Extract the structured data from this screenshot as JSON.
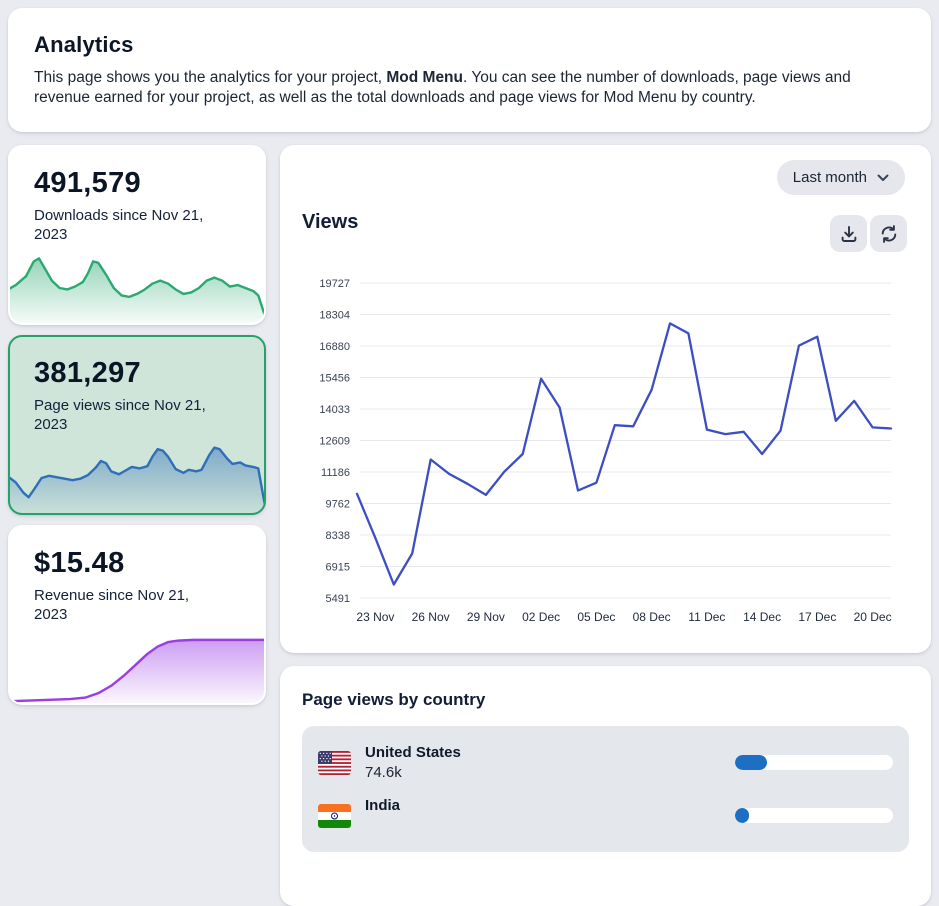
{
  "header": {
    "title": "Analytics",
    "description_prefix": "This page shows you the analytics for your project, ",
    "project_name": "Mod Menu",
    "description_suffix": ". You can see the number of downloads, page views and revenue earned for your project, as well as the total downloads and page views for Mod Menu by country."
  },
  "stat_cards": [
    {
      "id": "downloads",
      "value": "491,579",
      "label": "Downloads since Nov 21, 2023",
      "selected": false,
      "accent": "#2aa971",
      "sparkline": [
        [
          0,
          52
        ],
        [
          3,
          46
        ],
        [
          7,
          34
        ],
        [
          10,
          14
        ],
        [
          12,
          10
        ],
        [
          14,
          22
        ],
        [
          17,
          40
        ],
        [
          20,
          50
        ],
        [
          23,
          52
        ],
        [
          26,
          48
        ],
        [
          29,
          42
        ],
        [
          31,
          30
        ],
        [
          33,
          14
        ],
        [
          35,
          16
        ],
        [
          38,
          32
        ],
        [
          41,
          50
        ],
        [
          44,
          60
        ],
        [
          47,
          62
        ],
        [
          50,
          58
        ],
        [
          53,
          52
        ],
        [
          56,
          44
        ],
        [
          59,
          40
        ],
        [
          62,
          44
        ],
        [
          65,
          52
        ],
        [
          68,
          58
        ],
        [
          71,
          56
        ],
        [
          74,
          50
        ],
        [
          77,
          40
        ],
        [
          80,
          36
        ],
        [
          83,
          40
        ],
        [
          86,
          48
        ],
        [
          89,
          46
        ],
        [
          92,
          50
        ],
        [
          95,
          54
        ],
        [
          97,
          60
        ],
        [
          100,
          92
        ]
      ]
    },
    {
      "id": "page-views",
      "value": "381,297",
      "label": "Page views since Nov 21, 2023",
      "selected": true,
      "accent": "#2f6fb7",
      "sparkline": [
        [
          0,
          48
        ],
        [
          3,
          56
        ],
        [
          6,
          70
        ],
        [
          8,
          76
        ],
        [
          10,
          66
        ],
        [
          13,
          50
        ],
        [
          16,
          47
        ],
        [
          19,
          49
        ],
        [
          22,
          51
        ],
        [
          25,
          53
        ],
        [
          28,
          51
        ],
        [
          31,
          46
        ],
        [
          34,
          36
        ],
        [
          36,
          27
        ],
        [
          38,
          30
        ],
        [
          40,
          41
        ],
        [
          43,
          45
        ],
        [
          46,
          39
        ],
        [
          48,
          35
        ],
        [
          51,
          37
        ],
        [
          54,
          34
        ],
        [
          56,
          21
        ],
        [
          58,
          11
        ],
        [
          60,
          13
        ],
        [
          62,
          21
        ],
        [
          65,
          38
        ],
        [
          68,
          43
        ],
        [
          70,
          39
        ],
        [
          73,
          41
        ],
        [
          75,
          39
        ],
        [
          78,
          19
        ],
        [
          80,
          9
        ],
        [
          82,
          11
        ],
        [
          85,
          24
        ],
        [
          87,
          31
        ],
        [
          90,
          29
        ],
        [
          92,
          33
        ],
        [
          95,
          35
        ],
        [
          97,
          37
        ],
        [
          100,
          95
        ]
      ]
    },
    {
      "id": "revenue",
      "value": "$15.48",
      "label": "Revenue since Nov 21, 2023",
      "selected": false,
      "accent": "#9b3de4",
      "sparkline": [
        [
          0,
          95
        ],
        [
          8,
          94
        ],
        [
          16,
          93
        ],
        [
          24,
          92
        ],
        [
          30,
          90
        ],
        [
          35,
          84
        ],
        [
          40,
          74
        ],
        [
          45,
          60
        ],
        [
          50,
          44
        ],
        [
          54,
          31
        ],
        [
          58,
          21
        ],
        [
          62,
          15
        ],
        [
          66,
          13
        ],
        [
          72,
          12
        ],
        [
          80,
          12
        ],
        [
          90,
          12
        ],
        [
          100,
          12
        ]
      ]
    }
  ],
  "views_panel": {
    "range_selector_label": "Last month",
    "title": "Views"
  },
  "chart_data": {
    "type": "line",
    "title": "Views",
    "x": [
      "22 Nov",
      "23 Nov",
      "24 Nov",
      "25 Nov",
      "26 Nov",
      "27 Nov",
      "28 Nov",
      "29 Nov",
      "30 Nov",
      "01 Dec",
      "02 Dec",
      "03 Dec",
      "04 Dec",
      "05 Dec",
      "06 Dec",
      "07 Dec",
      "08 Dec",
      "09 Dec",
      "10 Dec",
      "11 Dec",
      "12 Dec",
      "13 Dec",
      "14 Dec",
      "15 Dec",
      "16 Dec",
      "17 Dec",
      "18 Dec",
      "19 Dec",
      "20 Dec",
      "21 Dec"
    ],
    "values": [
      10200,
      8200,
      6100,
      7500,
      11750,
      11100,
      10650,
      10150,
      11200,
      12000,
      15400,
      14100,
      10350,
      10700,
      13300,
      13250,
      14900,
      17900,
      17450,
      13100,
      12900,
      13000,
      12000,
      13050,
      16900,
      17300,
      13500,
      14400,
      13200,
      13150
    ],
    "x_tick_labels": [
      "23 Nov",
      "26 Nov",
      "29 Nov",
      "02 Dec",
      "05 Dec",
      "08 Dec",
      "11 Dec",
      "14 Dec",
      "17 Dec",
      "20 Dec"
    ],
    "y_tick_labels": [
      19727,
      18304,
      16880,
      15456,
      14033,
      12609,
      11186,
      9762,
      8338,
      6915,
      5491
    ],
    "ylim": [
      5491,
      19727
    ],
    "xlabel": "",
    "ylabel": "",
    "line_color": "#3c4ec1",
    "grid": "horizontal",
    "legend": false
  },
  "country_panel": {
    "title": "Page views by country",
    "bar_color": "#1d6fc4",
    "rows": [
      {
        "country": "United States",
        "views": "74.6k",
        "percent": 20,
        "flag": "us"
      },
      {
        "country": "India",
        "views": "",
        "percent": 9,
        "flag": "in"
      }
    ]
  }
}
